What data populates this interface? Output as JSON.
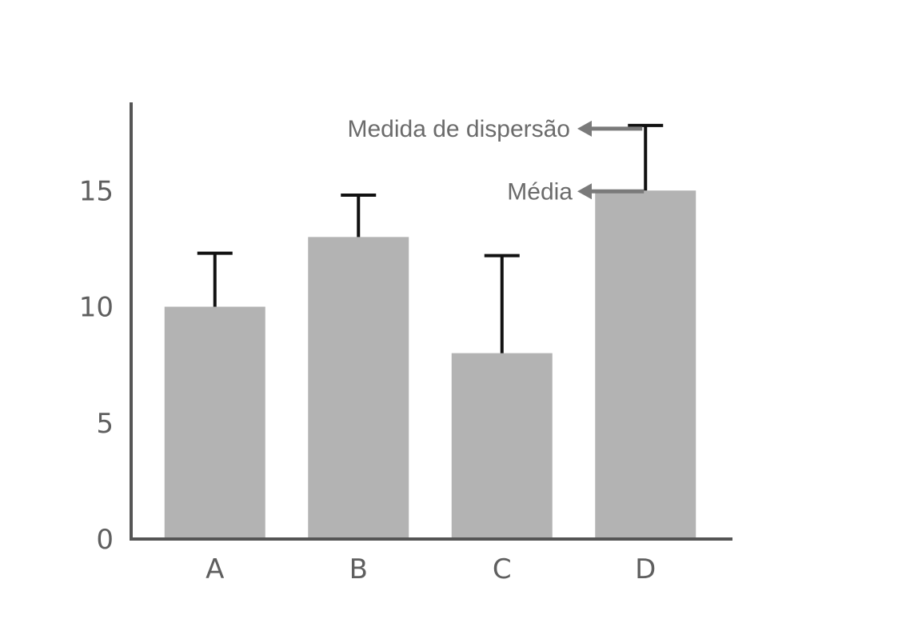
{
  "chart_data": {
    "type": "bar",
    "categories": [
      "A",
      "B",
      "C",
      "D"
    ],
    "series": [
      {
        "values": [
          10,
          13,
          8,
          15
        ],
        "error_upper": [
          12.3,
          14.8,
          12.2,
          17.8
        ]
      }
    ],
    "ylim": [
      0,
      18.8
    ],
    "yticks": [
      0,
      5,
      10,
      15
    ],
    "ytick_labels": [
      "0",
      "5",
      "10",
      "15"
    ],
    "xtick_labels": [
      "A",
      "B",
      "C",
      "D"
    ],
    "title": "",
    "xlabel": "",
    "ylabel": "",
    "grid": false,
    "annotations": [
      {
        "label": "Medida de dispersão",
        "points_to_category": "D",
        "points_to_value": 17.8
      },
      {
        "label": "Média",
        "points_to_category": "D",
        "points_to_value": 15
      }
    ],
    "colors": {
      "bar": "#b3b3b3",
      "error_bar": "#111111",
      "axis": "#555555",
      "annotation_arrow": "#7a7a7a",
      "text": "#606060"
    }
  }
}
